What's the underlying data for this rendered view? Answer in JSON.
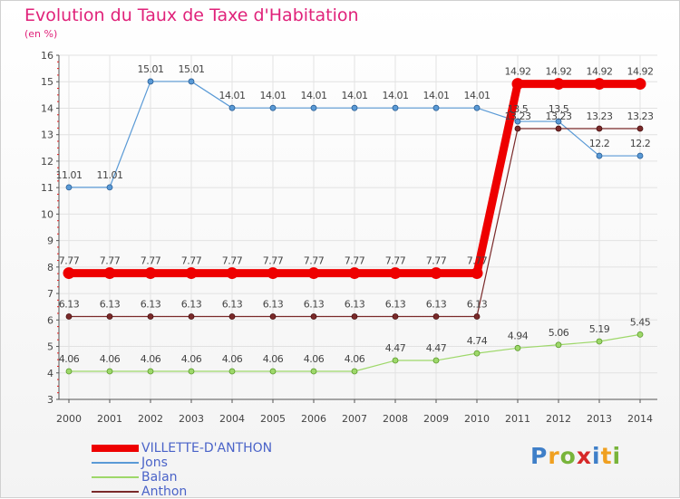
{
  "header": {
    "title": "Evolution du Taux de Taxe d'Habitation",
    "subtitle": "(en %)"
  },
  "logo": {
    "letters": [
      "P",
      "r",
      "o",
      "x",
      "i",
      "t",
      "i"
    ]
  },
  "colors": {
    "grid": "#e2e2e2",
    "axis": "#555555",
    "tick_red": "#e02020",
    "label": "#444444"
  },
  "chart_data": {
    "type": "line",
    "title": "Evolution du Taux de Taxe d'Habitation",
    "ylabel": "(en %)",
    "xlabel": "",
    "x": [
      "2000",
      "2001",
      "2002",
      "2003",
      "2004",
      "2005",
      "2006",
      "2007",
      "2008",
      "2009",
      "2010",
      "2011",
      "2012",
      "2013",
      "2014"
    ],
    "ylim": [
      3,
      16
    ],
    "yticks": [
      "3",
      "4",
      "5",
      "6",
      "7",
      "8",
      "9",
      "10",
      "11",
      "12",
      "13",
      "14",
      "15",
      "16"
    ],
    "grid": true,
    "legend_position": "bottom-left",
    "series": [
      {
        "name": "VILLETTE-D'ANTHON",
        "color": "#ee0000",
        "values": [
          7.77,
          7.77,
          7.77,
          7.77,
          7.77,
          7.77,
          7.77,
          7.77,
          7.77,
          7.77,
          7.77,
          14.92,
          14.92,
          14.92,
          14.92
        ],
        "labels": [
          "7.77",
          "7.77",
          "7.77",
          "7.77",
          "7.77",
          "7.77",
          "7.77",
          "7.77",
          "7.77",
          "7.77",
          "7.77",
          "14.92",
          "14.92",
          "14.92",
          "14.92"
        ]
      },
      {
        "name": "Jons",
        "color": "#5a9ad6",
        "values": [
          11.01,
          11.01,
          15.01,
          15.01,
          14.01,
          14.01,
          14.01,
          14.01,
          14.01,
          14.01,
          14.01,
          13.5,
          13.5,
          12.2,
          12.2
        ],
        "labels": [
          "11.01",
          "11.01",
          "15.01",
          "15.01",
          "14.01",
          "14.01",
          "14.01",
          "14.01",
          "14.01",
          "14.01",
          "14.01",
          "13.5",
          "13.5",
          "12.2",
          "12.2"
        ]
      },
      {
        "name": "Balan",
        "color": "#9ed86a",
        "values": [
          4.06,
          4.06,
          4.06,
          4.06,
          4.06,
          4.06,
          4.06,
          4.06,
          4.47,
          4.47,
          4.74,
          4.94,
          5.06,
          5.19,
          5.45
        ],
        "labels": [
          "4.06",
          "4.06",
          "4.06",
          "4.06",
          "4.06",
          "4.06",
          "4.06",
          "4.06",
          "4.47",
          "4.47",
          "4.74",
          "4.94",
          "5.06",
          "5.19",
          "5.45"
        ]
      },
      {
        "name": "Anthon",
        "color": "#7a2a2a",
        "values": [
          6.13,
          6.13,
          6.13,
          6.13,
          6.13,
          6.13,
          6.13,
          6.13,
          6.13,
          6.13,
          6.13,
          13.23,
          13.23,
          13.23,
          13.23
        ],
        "labels": [
          "6.13",
          "6.13",
          "6.13",
          "6.13",
          "6.13",
          "6.13",
          "6.13",
          "6.13",
          "6.13",
          "6.13",
          "6.13",
          "13.23",
          "13.23",
          "13.23",
          "13.23"
        ]
      }
    ]
  }
}
